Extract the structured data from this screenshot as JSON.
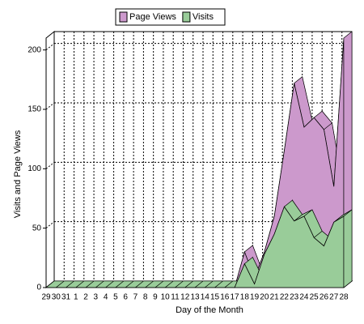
{
  "chart_data": {
    "type": "area",
    "y_label": "Visits and Page Views",
    "x_label": "Day of the Month",
    "categories": [
      "29",
      "30",
      "31",
      "1",
      "2",
      "3",
      "4",
      "5",
      "6",
      "7",
      "8",
      "9",
      "10",
      "11",
      "12",
      "13",
      "14",
      "15",
      "16",
      "17",
      "18",
      "19",
      "20",
      "21",
      "22",
      "23",
      "24",
      "25",
      "26",
      "27",
      "28"
    ],
    "series": [
      {
        "name": "Page Views",
        "color": "#cc99cc",
        "values": [
          0,
          0,
          0,
          0,
          0,
          0,
          0,
          0,
          0,
          0,
          0,
          0,
          0,
          0,
          0,
          0,
          0,
          0,
          0,
          0,
          30,
          8,
          30,
          60,
          115,
          172,
          135,
          143,
          133,
          85,
          210
        ]
      },
      {
        "name": "Visits",
        "color": "#99cc99",
        "values": [
          0,
          0,
          0,
          0,
          0,
          0,
          0,
          0,
          0,
          0,
          0,
          0,
          0,
          0,
          0,
          0,
          0,
          0,
          0,
          0,
          20,
          3,
          28,
          45,
          68,
          56,
          60,
          42,
          35,
          55,
          60
        ]
      }
    ],
    "ylim": [
      0,
      210
    ],
    "yticks": [
      0,
      50,
      100,
      150,
      200
    ],
    "grid": true,
    "legend": "top"
  }
}
